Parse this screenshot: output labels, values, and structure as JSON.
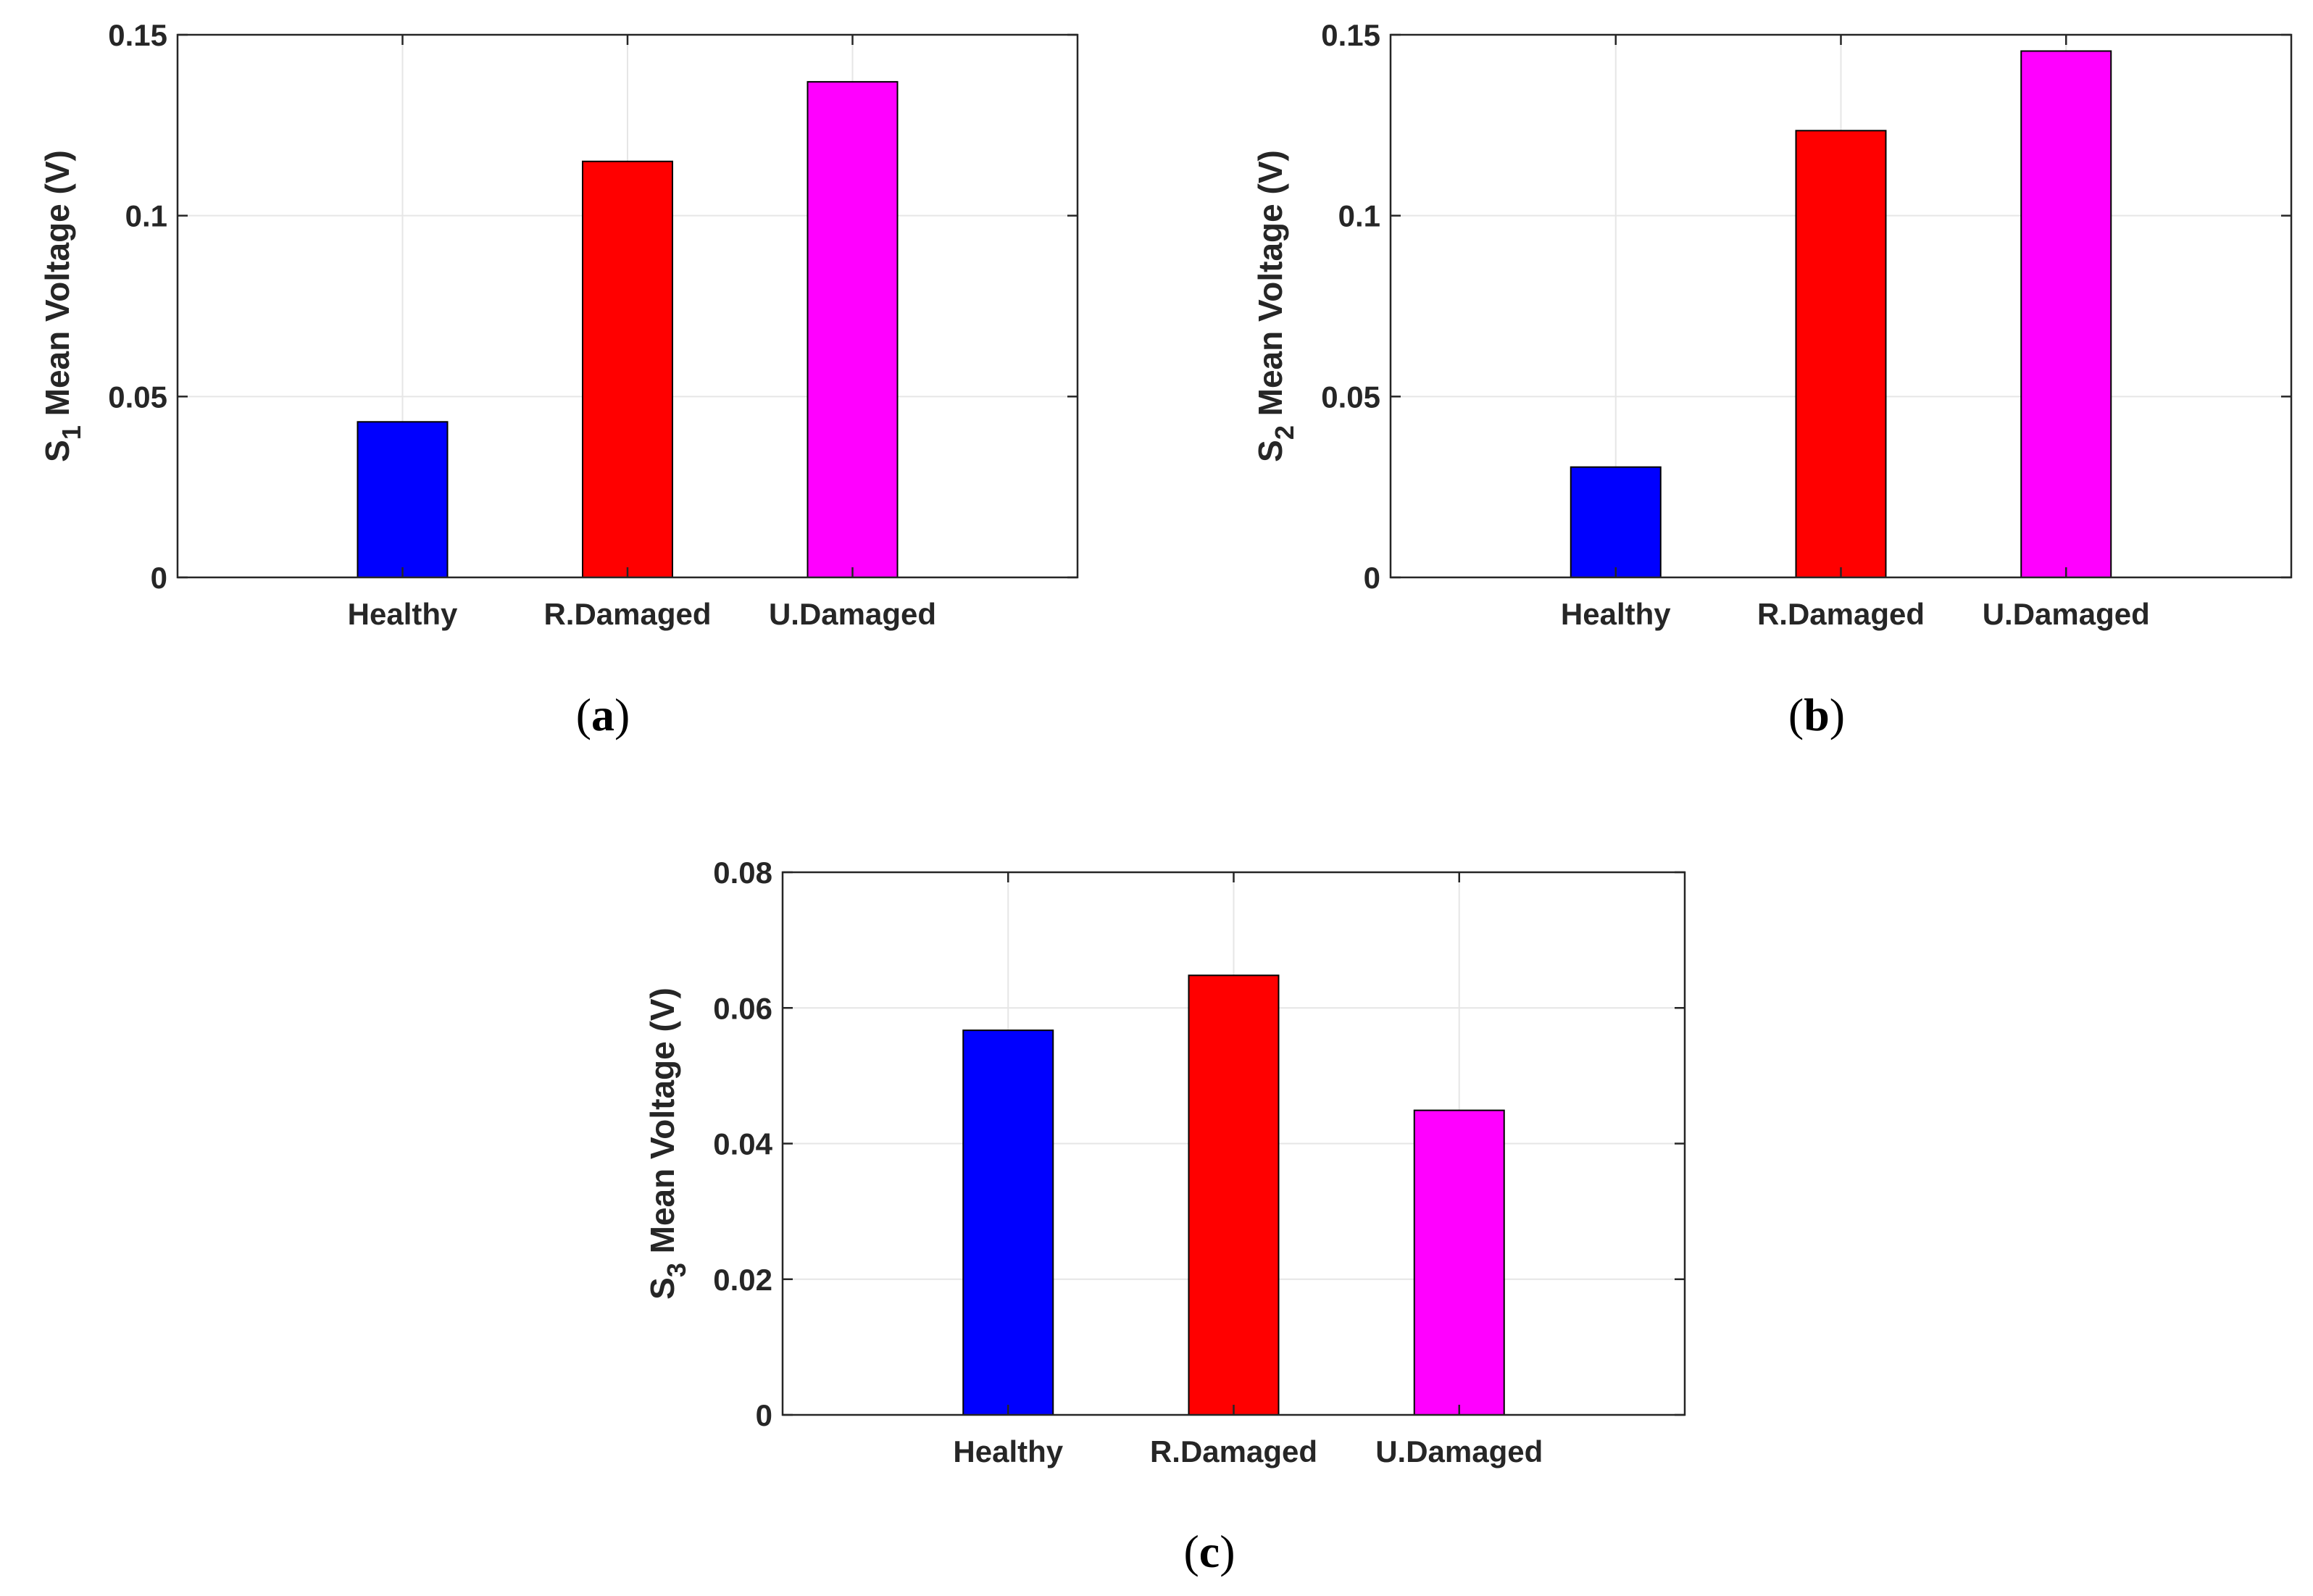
{
  "chart_data": [
    {
      "type": "bar",
      "panel_label": "a",
      "ylabel": {
        "prefix": "S",
        "subscript": "1",
        "suffix": " Mean Voltage (V)"
      },
      "xlabel": "",
      "title": "",
      "categories": [
        "Healthy",
        "R.Damaged",
        "U.Damaged"
      ],
      "values": [
        0.043,
        0.115,
        0.137
      ],
      "colors": [
        "#0000ff",
        "#ff0000",
        "#ff00ff"
      ],
      "ylim": [
        0,
        0.15
      ],
      "yticks": [
        0,
        0.05,
        0.1,
        0.15
      ],
      "ytick_labels": [
        "0",
        "0.05",
        "0.1",
        "0.15"
      ],
      "xlim": [
        0,
        4
      ],
      "grid": true
    },
    {
      "type": "bar",
      "panel_label": "b",
      "ylabel": {
        "prefix": "S",
        "subscript": "2",
        "suffix": " Mean Voltage (V)"
      },
      "xlabel": "",
      "title": "",
      "categories": [
        "Healthy",
        "R.Damaged",
        "U.Damaged"
      ],
      "values": [
        0.0305,
        0.1235,
        0.1455
      ],
      "colors": [
        "#0000ff",
        "#ff0000",
        "#ff00ff"
      ],
      "ylim": [
        0,
        0.15
      ],
      "yticks": [
        0,
        0.05,
        0.1,
        0.15
      ],
      "ytick_labels": [
        "0",
        "0.05",
        "0.1",
        "0.15"
      ],
      "xlim": [
        0,
        4
      ],
      "grid": true
    },
    {
      "type": "bar",
      "panel_label": "c",
      "ylabel": {
        "prefix": "S",
        "subscript": "3",
        "suffix": " Mean Voltage (V)"
      },
      "xlabel": "",
      "title": "",
      "categories": [
        "Healthy",
        "R.Damaged",
        "U.Damaged"
      ],
      "values": [
        0.0567,
        0.0648,
        0.0449
      ],
      "colors": [
        "#0000ff",
        "#ff0000",
        "#ff00ff"
      ],
      "ylim": [
        0,
        0.08
      ],
      "yticks": [
        0,
        0.02,
        0.04,
        0.06,
        0.08
      ],
      "ytick_labels": [
        "0",
        "0.02",
        "0.04",
        "0.06",
        "0.08"
      ],
      "xlim": [
        0,
        4
      ],
      "grid": true
    }
  ]
}
